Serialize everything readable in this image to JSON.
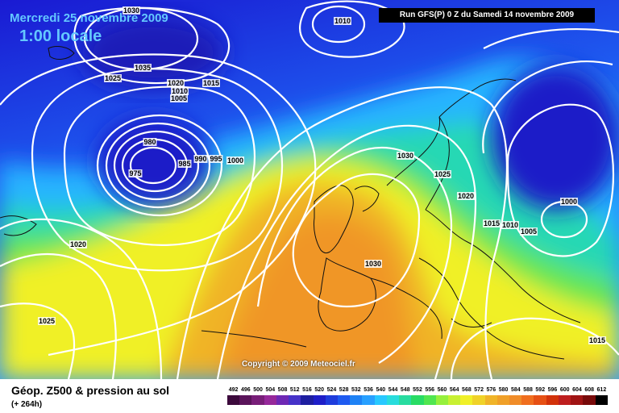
{
  "map": {
    "forecast_date": "Mercredi 25 novembre 2009",
    "forecast_time": "1:00 locale",
    "run_info": "Run GFS(P) 0 Z du Samedi 14 novembre 2009",
    "copyright": "Copyright © 2009 Meteociel.fr",
    "colors": {
      "deep_blue": "#1a1adc",
      "blue": "#1e5af0",
      "cyan": "#28b4ff",
      "green": "#28dc64",
      "yellow": "#f0f028",
      "orange": "#f0a028",
      "contour": "#ffffff",
      "coastline": "#111111"
    },
    "isobar_labels": [
      {
        "id": "1030-top",
        "text": "1030"
      },
      {
        "id": "1010-top",
        "text": "1010"
      },
      {
        "id": "1035",
        "text": "1035"
      },
      {
        "id": "1025-left",
        "text": "1025"
      },
      {
        "id": "1020-mid",
        "text": "1020"
      },
      {
        "id": "1015-mid",
        "text": "1015"
      },
      {
        "id": "1010-mid",
        "text": "1010"
      },
      {
        "id": "1005-mid",
        "text": "1005"
      },
      {
        "id": "980",
        "text": "980"
      },
      {
        "id": "975",
        "text": "975"
      },
      {
        "id": "985",
        "text": "985"
      },
      {
        "id": "990",
        "text": "990"
      },
      {
        "id": "995",
        "text": "995"
      },
      {
        "id": "1000-mid",
        "text": "1000"
      },
      {
        "id": "1030-north",
        "text": "1030"
      },
      {
        "id": "1025-east",
        "text": "1025"
      },
      {
        "id": "1020-east",
        "text": "1020"
      },
      {
        "id": "1015-east",
        "text": "1015"
      },
      {
        "id": "1010-east",
        "text": "1010"
      },
      {
        "id": "1005-east",
        "text": "1005"
      },
      {
        "id": "1000-east",
        "text": "1000"
      },
      {
        "id": "1020-west",
        "text": "1020"
      },
      {
        "id": "1025-southwest",
        "text": "1025"
      },
      {
        "id": "1030-france",
        "text": "1030"
      },
      {
        "id": "1015-southeast",
        "text": "1015"
      }
    ]
  },
  "legend": {
    "title": "Géop. Z500 & pression au sol",
    "lead_time": "(+ 264h)",
    "scale_values": [
      "492",
      "496",
      "500",
      "504",
      "508",
      "512",
      "516",
      "520",
      "524",
      "528",
      "532",
      "536",
      "540",
      "544",
      "548",
      "552",
      "556",
      "560",
      "564",
      "568",
      "572",
      "576",
      "580",
      "584",
      "588",
      "592",
      "596",
      "600",
      "604",
      "608",
      "612"
    ],
    "scale_colors": [
      "#3c0a3c",
      "#5a145a",
      "#781e78",
      "#96289a",
      "#6e28b4",
      "#4632c8",
      "#1e1ea0",
      "#1e1ec8",
      "#1e3cdc",
      "#1e5af0",
      "#1e82f5",
      "#28a0ff",
      "#28c8ff",
      "#28dcdc",
      "#28dca0",
      "#28dc64",
      "#50e650",
      "#96f03c",
      "#c8f032",
      "#f0f028",
      "#f0d228",
      "#f0b428",
      "#f0a028",
      "#f08c28",
      "#f06e1e",
      "#e65014",
      "#d2320a",
      "#be1e1e",
      "#a01414",
      "#780a0a",
      "#000000"
    ]
  }
}
